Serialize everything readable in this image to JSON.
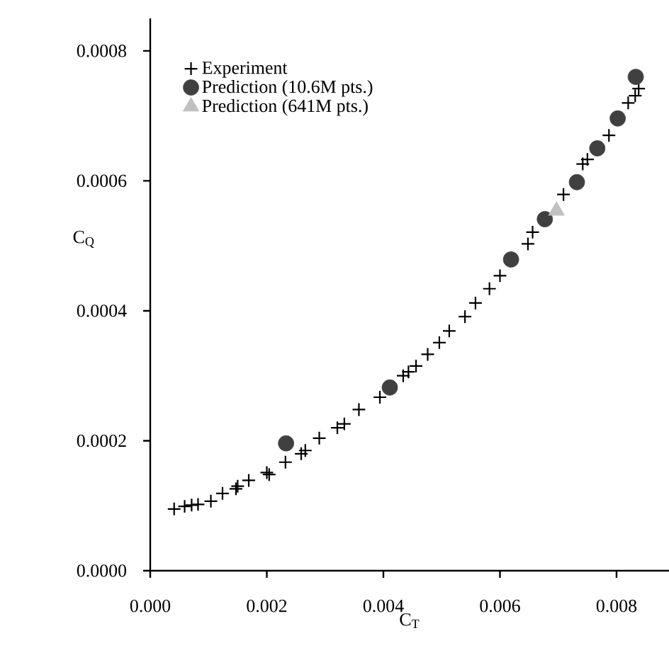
{
  "chart_data": {
    "type": "scatter",
    "xlabel": "C$_{T}$",
    "ylabel": "C$_{Q}$",
    "xlim": [
      0,
      0.0089
    ],
    "ylim": [
      0,
      0.00085
    ],
    "xticks": [
      {
        "value": 0,
        "label": "0.000"
      },
      {
        "value": 0.002,
        "label": "0.002"
      },
      {
        "value": 0.004,
        "label": "0.004"
      },
      {
        "value": 0.006,
        "label": "0.006"
      },
      {
        "value": 0.008,
        "label": "0.008"
      }
    ],
    "yticks": [
      {
        "value": 0,
        "label": "0.0000"
      },
      {
        "value": 0.0002,
        "label": "0.0002"
      },
      {
        "value": 0.0004,
        "label": "0.0004"
      },
      {
        "value": 0.0006,
        "label": "0.0006"
      },
      {
        "value": 0.0008,
        "label": "0.0008"
      }
    ],
    "grid": false,
    "legend": "top left",
    "series": [
      {
        "name": "Experiment",
        "color": "#000000",
        "marker": "cross",
        "x": [
          0.00041,
          0.00059,
          0.00071,
          0.00082,
          0.00104,
          0.00124,
          0.00147,
          0.0015,
          0.00169,
          0.002,
          0.00204,
          0.00232,
          0.00259,
          0.00266,
          0.0029,
          0.00321,
          0.00333,
          0.00358,
          0.00394,
          0.00434,
          0.00443,
          0.00456,
          0.00476,
          0.00496,
          0.00513,
          0.0054,
          0.00558,
          0.00582,
          0.006,
          0.00648,
          0.00656,
          0.00709,
          0.00742,
          0.0075,
          0.00787,
          0.0082,
          0.00832,
          0.00838
        ],
        "values": [
          9.5e-05,
          9.9e-05,
          0.000101,
          0.000102,
          0.000107,
          0.000119,
          0.000126,
          0.00013,
          0.000139,
          0.000151,
          0.000148,
          0.000167,
          0.00018,
          0.000185,
          0.000204,
          0.00022,
          0.000226,
          0.000248,
          0.000267,
          0.0003,
          0.000306,
          0.000315,
          0.000333,
          0.000351,
          0.000369,
          0.000391,
          0.000412,
          0.000434,
          0.000454,
          0.000503,
          0.000521,
          0.000579,
          0.000626,
          0.000633,
          0.00067,
          0.00072,
          0.000731,
          0.000742
        ]
      },
      {
        "name": "Prediction (10.6M pts.)",
        "color": "#404040",
        "marker": "circle",
        "x": [
          0.00233,
          0.00411,
          0.00619,
          0.00677,
          0.00732,
          0.00767,
          0.00802,
          0.00833
        ],
        "values": [
          0.000196,
          0.000282,
          0.000479,
          0.000541,
          0.000598,
          0.00065,
          0.000696,
          0.00076
        ]
      },
      {
        "name": "Prediction (641M pts.)",
        "color": "#c0c0c0",
        "marker": "triangle",
        "x": [
          0.00697
        ],
        "values": [
          0.000554
        ]
      }
    ]
  }
}
